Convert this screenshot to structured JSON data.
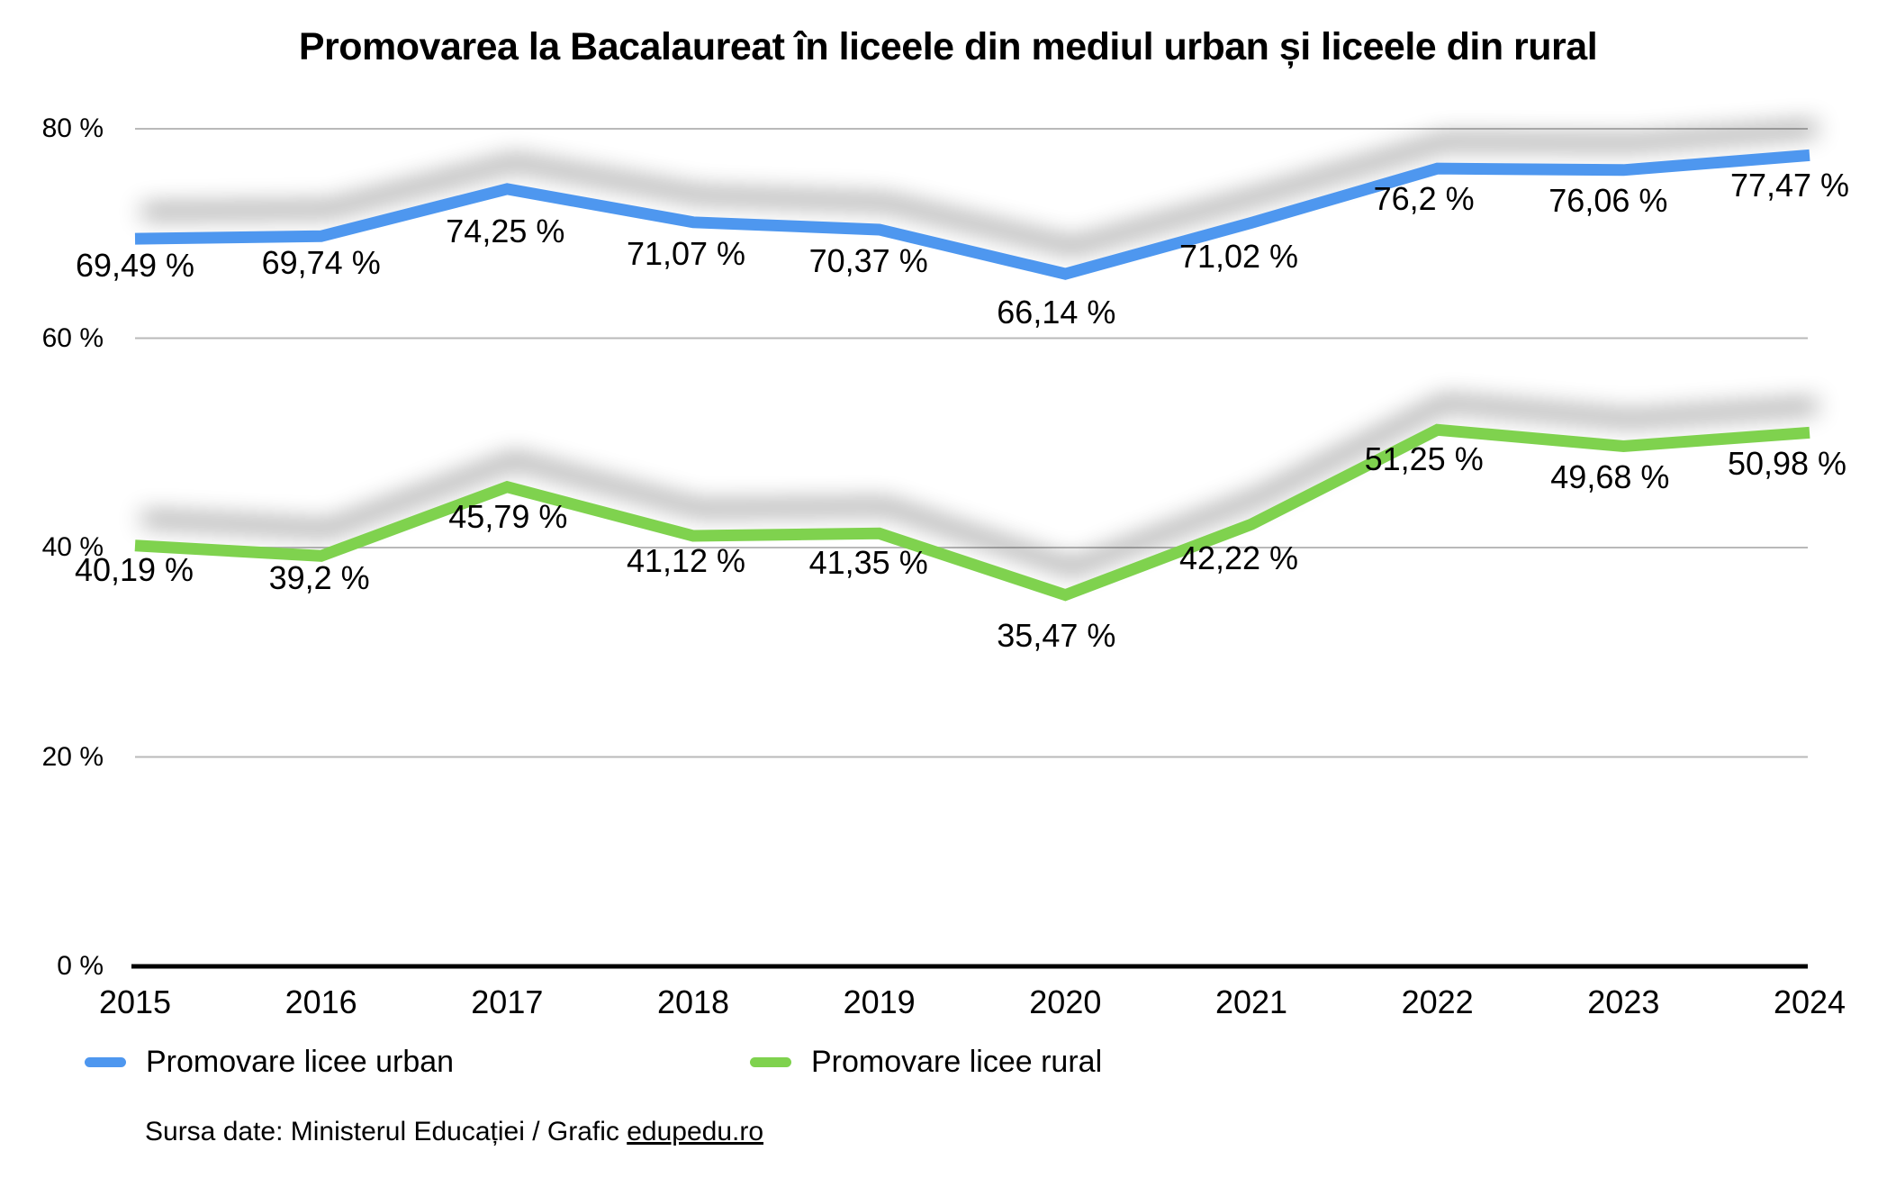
{
  "chart_data": {
    "type": "line",
    "title": "Promovarea la Bacalaureat în liceele din mediul urban și liceele din rural",
    "xlabel": "",
    "ylabel": "",
    "categories": [
      "2015",
      "2016",
      "2017",
      "2018",
      "2019",
      "2020",
      "2021",
      "2022",
      "2023",
      "2024"
    ],
    "series": [
      {
        "name": "Promovare licee urban",
        "color": "#4E97EF",
        "values": [
          69.49,
          69.74,
          74.25,
          71.07,
          70.37,
          66.14,
          71.02,
          76.2,
          76.06,
          77.47
        ],
        "labels": [
          "69,49 %",
          "69,74 %",
          "74,25 %",
          "71,07 %",
          "70,37 %",
          "66,14 %",
          "71,02 %",
          "76,2 %",
          "76,06 %",
          "77,47 %"
        ],
        "label_offsets": [
          [
            0,
            30
          ],
          [
            0,
            30
          ],
          [
            -2,
            47
          ],
          [
            -8,
            35
          ],
          [
            -12,
            35
          ],
          [
            -10,
            43
          ],
          [
            -14,
            38
          ],
          [
            -15,
            34
          ],
          [
            -17,
            34
          ],
          [
            -22,
            34
          ]
        ]
      },
      {
        "name": "Promovare licee rural",
        "color": "#7FD24E",
        "values": [
          40.19,
          39.2,
          45.79,
          41.12,
          41.35,
          35.47,
          42.22,
          51.25,
          49.68,
          50.98
        ],
        "labels": [
          "40,19 %",
          "39,2 %",
          "45,79 %",
          "41,12 %",
          "41,35 %",
          "35,47 %",
          "42,22 %",
          "51,25 %",
          "49,68 %",
          "50,98 %"
        ],
        "label_offsets": [
          [
            -1,
            27
          ],
          [
            -2,
            25
          ],
          [
            1,
            33
          ],
          [
            -8,
            28
          ],
          [
            -12,
            33
          ],
          [
            -10,
            45
          ],
          [
            -14,
            38
          ],
          [
            -15,
            33
          ],
          [
            -15,
            35
          ],
          [
            -25,
            35
          ]
        ]
      }
    ],
    "y_ticks": [
      {
        "value": 0,
        "label": "0 %"
      },
      {
        "value": 20,
        "label": "20 %"
      },
      {
        "value": 40,
        "label": "40 %"
      },
      {
        "value": 60,
        "label": "60 %"
      },
      {
        "value": 80,
        "label": "80 %"
      }
    ],
    "ylim": [
      0,
      80
    ],
    "grid": true,
    "legend_position": "bottom"
  },
  "source": {
    "prefix": "Sursa date: Ministerul Educației / Grafic ",
    "link": "edupedu.ro"
  }
}
